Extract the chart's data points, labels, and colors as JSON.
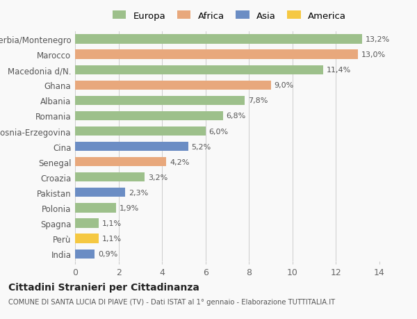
{
  "countries": [
    "Serbia/Montenegro",
    "Marocco",
    "Macedonia d/N.",
    "Ghana",
    "Albania",
    "Romania",
    "Bosnia-Erzegovina",
    "Cina",
    "Senegal",
    "Croazia",
    "Pakistan",
    "Polonia",
    "Spagna",
    "Perù",
    "India"
  ],
  "values": [
    13.2,
    13.0,
    11.4,
    9.0,
    7.8,
    6.8,
    6.0,
    5.2,
    4.2,
    3.2,
    2.3,
    1.9,
    1.1,
    1.1,
    0.9
  ],
  "labels": [
    "13,2%",
    "13,0%",
    "11,4%",
    "9,0%",
    "7,8%",
    "6,8%",
    "6,0%",
    "5,2%",
    "4,2%",
    "3,2%",
    "2,3%",
    "1,9%",
    "1,1%",
    "1,1%",
    "0,9%"
  ],
  "continents": [
    "Europa",
    "Africa",
    "Europa",
    "Africa",
    "Europa",
    "Europa",
    "Europa",
    "Asia",
    "Africa",
    "Europa",
    "Asia",
    "Europa",
    "Europa",
    "America",
    "Asia"
  ],
  "colors": {
    "Europa": "#9dc08b",
    "Africa": "#e8a87c",
    "Asia": "#6b8dc4",
    "America": "#f5c842"
  },
  "xlim": [
    0,
    14
  ],
  "xticks": [
    0,
    2,
    4,
    6,
    8,
    10,
    12,
    14
  ],
  "title1": "Cittadini Stranieri per Cittadinanza",
  "title2": "COMUNE DI SANTA LUCIA DI PIAVE (TV) - Dati ISTAT al 1° gennaio - Elaborazione TUTTITALIA.IT",
  "background_color": "#f9f9f9",
  "bar_height": 0.6,
  "legend_order": [
    "Europa",
    "Africa",
    "Asia",
    "America"
  ]
}
